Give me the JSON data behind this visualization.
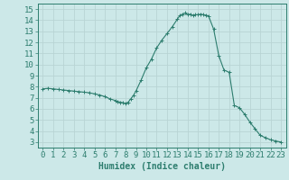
{
  "x": [
    0,
    0.5,
    1,
    1.5,
    2,
    2.5,
    3,
    3.5,
    4,
    4.5,
    5,
    5.5,
    6,
    6.5,
    7,
    7.25,
    7.5,
    7.75,
    8,
    8.25,
    8.5,
    8.75,
    9,
    9.5,
    10,
    10.5,
    11,
    11.5,
    12,
    12.5,
    13,
    13.25,
    13.5,
    13.75,
    14,
    14.25,
    14.5,
    14.75,
    15,
    15.25,
    15.5,
    15.75,
    16,
    16.5,
    17,
    17.5,
    18,
    18.5,
    19,
    19.5,
    20,
    20.5,
    21,
    21.5,
    22,
    22.5,
    23
  ],
  "y": [
    7.8,
    7.85,
    7.8,
    7.75,
    7.7,
    7.65,
    7.6,
    7.55,
    7.5,
    7.45,
    7.35,
    7.25,
    7.1,
    6.9,
    6.75,
    6.65,
    6.6,
    6.55,
    6.5,
    6.6,
    6.9,
    7.2,
    7.6,
    8.6,
    9.7,
    10.5,
    11.5,
    12.2,
    12.8,
    13.4,
    14.1,
    14.45,
    14.55,
    14.65,
    14.5,
    14.55,
    14.45,
    14.5,
    14.5,
    14.55,
    14.5,
    14.45,
    14.4,
    13.2,
    10.8,
    9.5,
    9.3,
    6.3,
    6.1,
    5.5,
    4.8,
    4.2,
    3.6,
    3.4,
    3.2,
    3.1,
    3.0
  ],
  "line_color": "#2d7d6e",
  "marker_color": "#2d7d6e",
  "bg_color": "#cce8e8",
  "grid_color": "#b8d4d4",
  "axis_color": "#2d7d6e",
  "xlabel": "Humidex (Indice chaleur)",
  "xlim": [
    -0.5,
    23.5
  ],
  "ylim": [
    2.5,
    15.5
  ],
  "yticks": [
    3,
    4,
    5,
    6,
    7,
    8,
    9,
    10,
    11,
    12,
    13,
    14,
    15
  ],
  "xticks": [
    0,
    1,
    2,
    3,
    4,
    5,
    6,
    7,
    8,
    9,
    10,
    11,
    12,
    13,
    14,
    15,
    16,
    17,
    18,
    19,
    20,
    21,
    22,
    23
  ],
  "font_family": "monospace",
  "xlabel_fontsize": 7,
  "tick_fontsize": 6.5
}
